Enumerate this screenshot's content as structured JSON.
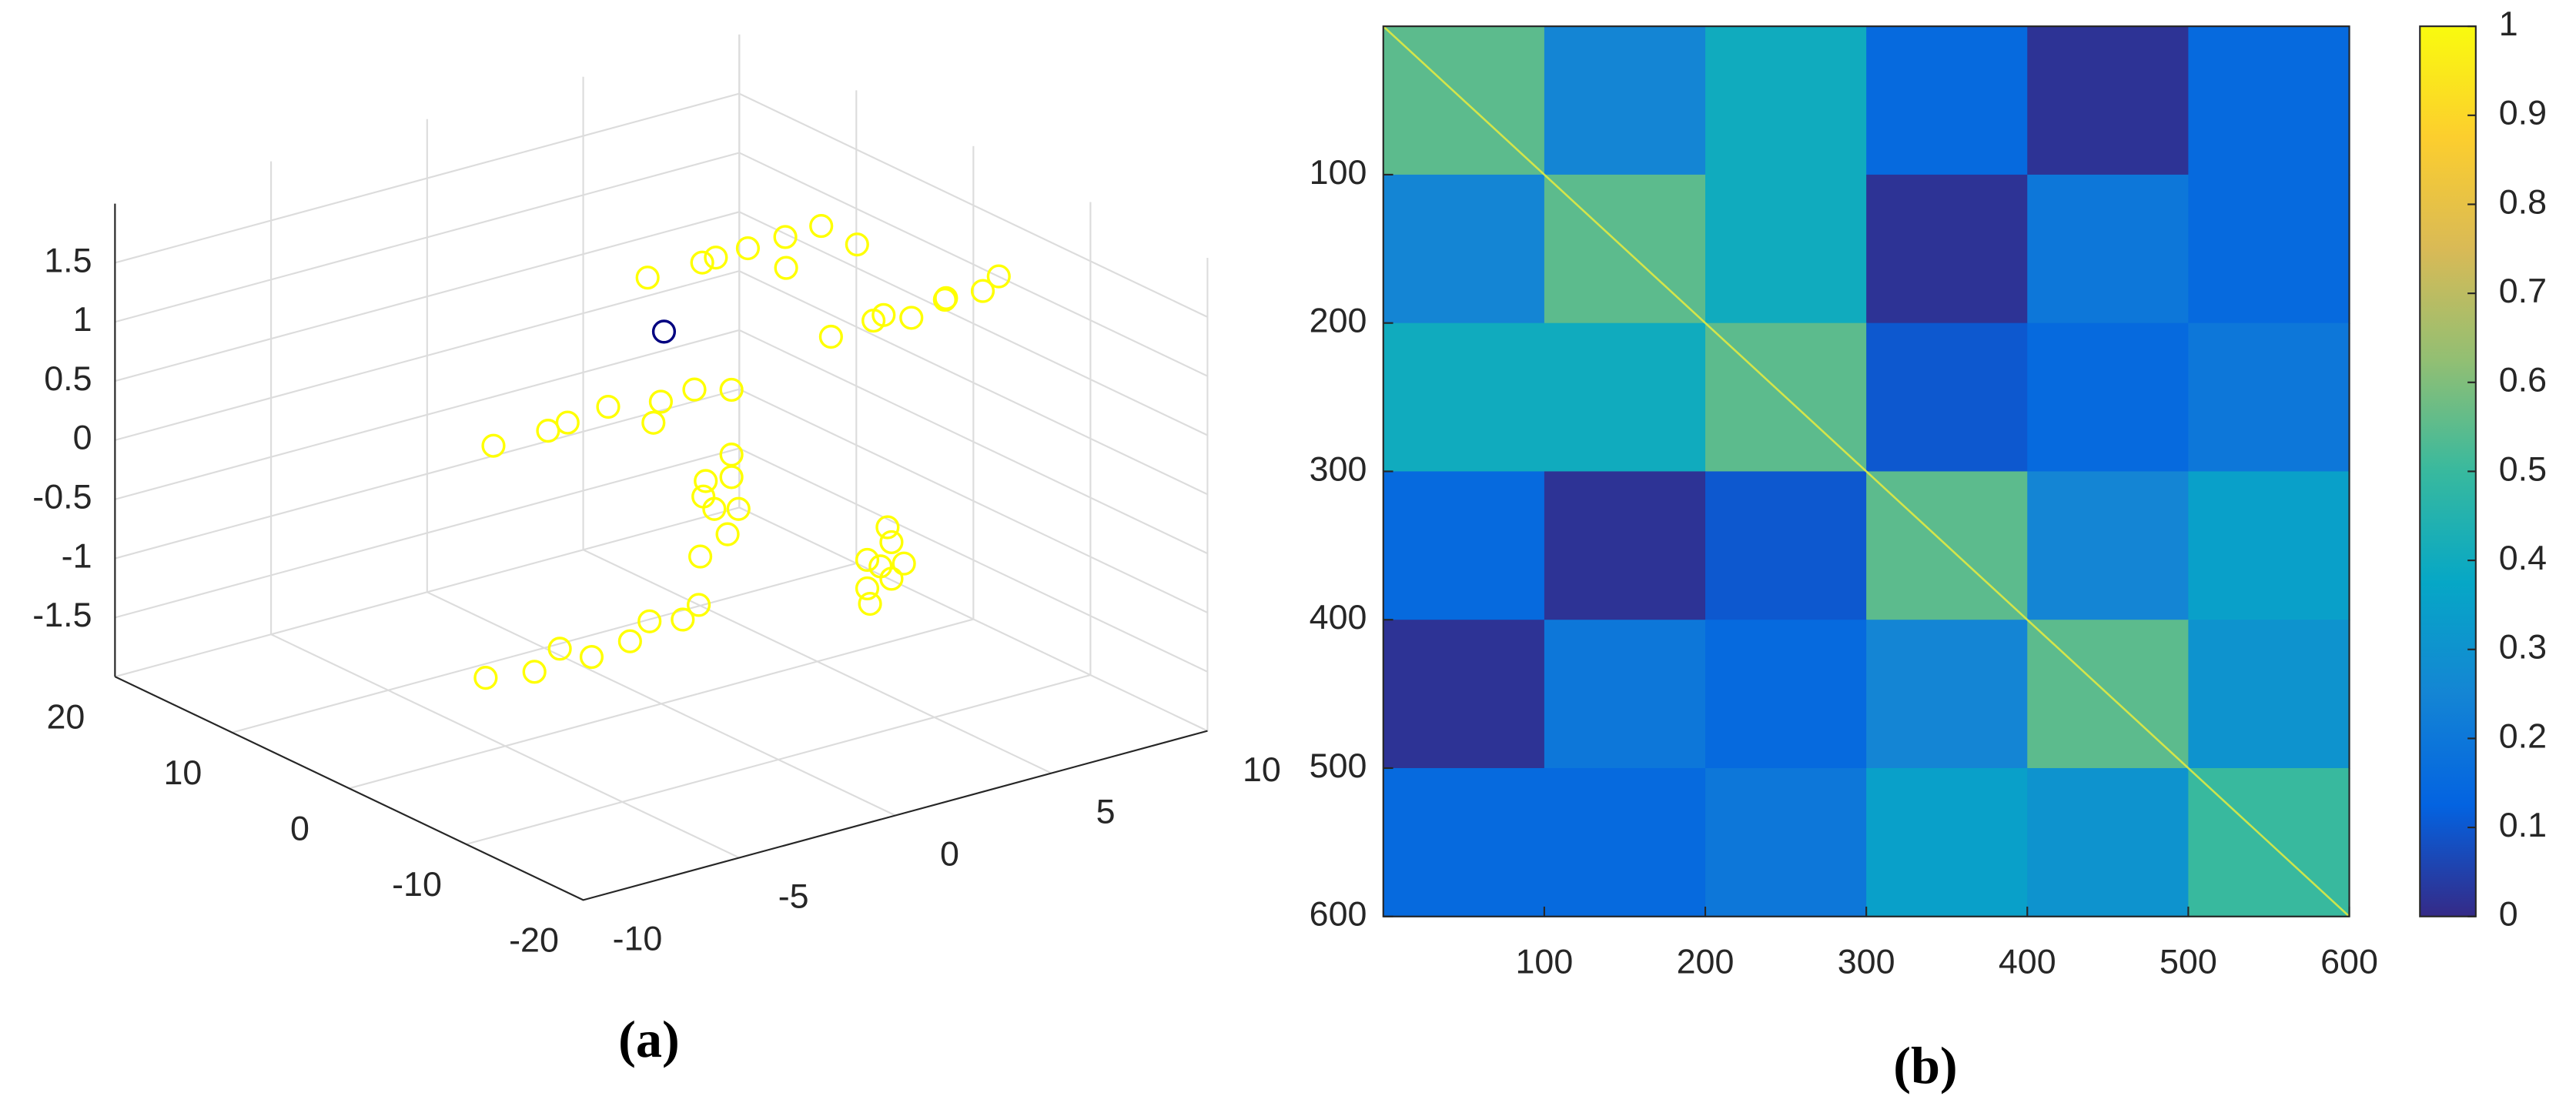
{
  "chart_data": [
    {
      "type": "scatter3d",
      "caption": "(a)",
      "xlim": [
        -10,
        10
      ],
      "xticks": [
        -10,
        -5,
        0,
        5,
        10
      ],
      "ylim": [
        -20,
        20
      ],
      "yticks": [
        -20,
        -10,
        0,
        10,
        20
      ],
      "zlim": [
        -2,
        2
      ],
      "zticks": [
        -1.5,
        -1,
        -0.5,
        0,
        0.5,
        1,
        1.5
      ],
      "grid": true,
      "series": [
        {
          "color": "#ffff00",
          "x": [
            0.5,
            1.5,
            2.5,
            3.3,
            4,
            4.8,
            5.5,
            6.2,
            4.5,
            5.3,
            6,
            6.7,
            7.4,
            8,
            8.8,
            9.5,
            -2,
            -1,
            0,
            1,
            2,
            2.8,
            3.5,
            4.5,
            -1,
            -0.5,
            -0.7,
            0,
            -1.2,
            -0.3,
            0.3,
            -0.9,
            5,
            5.5,
            5.3,
            5.8,
            4.8,
            5.6,
            5.1,
            5.9,
            -4.5,
            -3.5,
            -2.5,
            -1.95,
            -1,
            0,
            0.5,
            1.2
          ],
          "y": [
            2.5,
            0.5,
            2,
            1.4,
            0,
            2.2,
            1,
            -0.2,
            -2.5,
            -4,
            -3,
            -3.5,
            -4.5,
            -3,
            -4,
            -3.5,
            9,
            7,
            8,
            7.2,
            6,
            7.5,
            6.5,
            6,
            -6,
            -7,
            -6.4,
            -6,
            -7,
            -6.8,
            -5.8,
            -6,
            -4.5,
            -5,
            -4.6,
            -4.2,
            -4.8,
            -4.4,
            -4,
            -5,
            3,
            1.5,
            2,
            0.75,
            0,
            1,
            -0.5,
            0
          ],
          "z": [
            1.45,
            1.6,
            1.5,
            1.55,
            1.4,
            1.5,
            1.6,
            1.45,
            0.9,
            1.05,
            1,
            0.95,
            1.1,
            1,
            1.05,
            1.1,
            -0.1,
            0.05,
            0,
            0.1,
            -0.05,
            0,
            0.1,
            0.05,
            -0.4,
            -0.2,
            0,
            0.2,
            0.3,
            0.45,
            -0.1,
            0.1,
            -1.3,
            -1.1,
            -1,
            -0.85,
            -0.9,
            -0.7,
            -1.2,
            -1,
            -1.6,
            -1.55,
            -1.45,
            -1.5,
            -1.4,
            -1.35,
            -1.3,
            -1.25
          ]
        },
        {
          "color": "#000080",
          "x": [
            0.8
          ],
          "y": [
            1.9
          ],
          "z": [
            1
          ]
        }
      ]
    },
    {
      "type": "heatmap",
      "caption": "(b)",
      "xbins": [
        0,
        100,
        200,
        300,
        400,
        500,
        600
      ],
      "ybins": [
        0,
        100,
        200,
        300,
        400,
        500,
        600
      ],
      "values": [
        [
          0.55,
          0.25,
          0.4,
          0.15,
          0.02,
          0.15
        ],
        [
          0.25,
          0.55,
          0.4,
          0.02,
          0.2,
          0.15
        ],
        [
          0.4,
          0.4,
          0.55,
          0.1,
          0.15,
          0.2
        ],
        [
          0.15,
          0.02,
          0.1,
          0.55,
          0.25,
          0.35
        ],
        [
          0.02,
          0.2,
          0.15,
          0.25,
          0.55,
          0.3
        ],
        [
          0.15,
          0.15,
          0.2,
          0.35,
          0.3,
          0.5
        ]
      ],
      "xlim": [
        0,
        600
      ],
      "xticks": [
        100,
        200,
        300,
        400,
        500,
        600
      ],
      "ylim": [
        600,
        0
      ],
      "yticks": [
        100,
        200,
        300,
        400,
        500,
        600
      ],
      "colorbar": {
        "clim": [
          0,
          1
        ],
        "ticks": [
          0,
          0.1,
          0.2,
          0.3,
          0.4,
          0.5,
          0.6,
          0.7,
          0.8,
          0.9,
          1
        ]
      },
      "colormap": [
        "#352a87",
        "#0363e1",
        "#1485d4",
        "#06a7c6",
        "#38b99e",
        "#92bf73",
        "#d9ba56",
        "#fcce2e",
        "#f9fb0e"
      ]
    }
  ]
}
